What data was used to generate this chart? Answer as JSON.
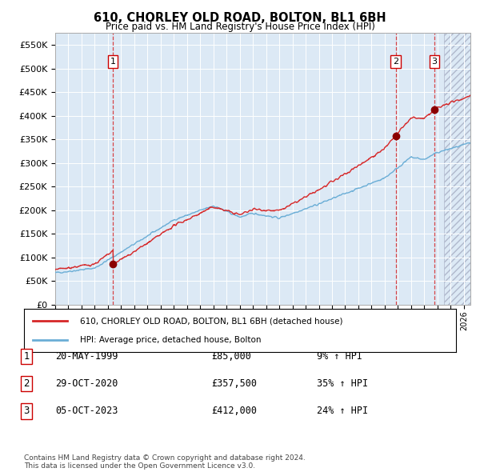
{
  "title": "610, CHORLEY OLD ROAD, BOLTON, BL1 6BH",
  "subtitle": "Price paid vs. HM Land Registry's House Price Index (HPI)",
  "legend_line1": "610, CHORLEY OLD ROAD, BOLTON, BL1 6BH (detached house)",
  "legend_line2": "HPI: Average price, detached house, Bolton",
  "transactions": [
    {
      "label": "1",
      "date_num": 1999.38,
      "price": 85000,
      "date_str": "20-MAY-1999",
      "price_str": "£85,000",
      "pct": "9% ↑ HPI"
    },
    {
      "label": "2",
      "date_num": 2020.83,
      "price": 357500,
      "date_str": "29-OCT-2020",
      "price_str": "£357,500",
      "pct": "35% ↑ HPI"
    },
    {
      "label": "3",
      "date_num": 2023.76,
      "price": 412000,
      "date_str": "05-OCT-2023",
      "price_str": "£412,000",
      "pct": "24% ↑ HPI"
    }
  ],
  "note1": "Contains HM Land Registry data © Crown copyright and database right 2024.",
  "note2": "This data is licensed under the Open Government Licence v3.0.",
  "hpi_line_color": "#6baed6",
  "price_line_color": "#d62728",
  "marker_color": "#8B0000",
  "dashed_line_color": "#d62728",
  "bg_color": "#dce9f5",
  "ylim": [
    0,
    575000
  ],
  "xlim_start": 1995.0,
  "xlim_end": 2026.5,
  "yticks": [
    0,
    50000,
    100000,
    150000,
    200000,
    250000,
    300000,
    350000,
    400000,
    450000,
    500000,
    550000
  ]
}
